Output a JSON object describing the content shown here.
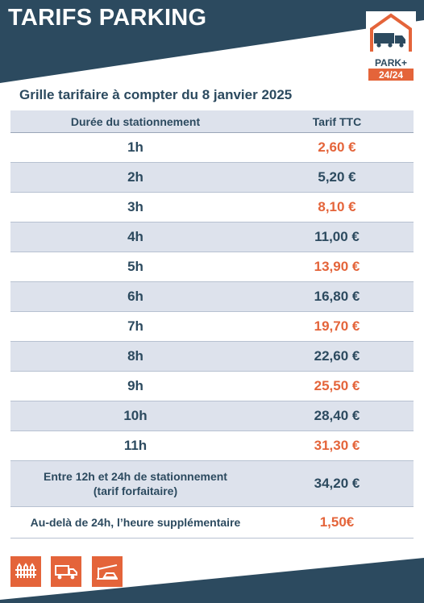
{
  "header": {
    "title": "TARIFS PARKING",
    "logo_text_top": "PARK+",
    "logo_text_bottom": "24/24"
  },
  "subtitle": "Grille tarifaire à compter du 8 janvier 2025",
  "table": {
    "headers": [
      "Durée du stationnement",
      "Tarif TTC"
    ],
    "rows": [
      {
        "duration": "1h",
        "price": "2,60 €"
      },
      {
        "duration": "2h",
        "price": "5,20 €"
      },
      {
        "duration": "3h",
        "price": "8,10 €"
      },
      {
        "duration": "4h",
        "price": "11,00 €"
      },
      {
        "duration": "5h",
        "price": "13,90 €"
      },
      {
        "duration": "6h",
        "price": "16,80 €"
      },
      {
        "duration": "7h",
        "price": "19,70 €"
      },
      {
        "duration": "8h",
        "price": "22,60 €"
      },
      {
        "duration": "9h",
        "price": "25,50 €"
      },
      {
        "duration": "10h",
        "price": "28,40 €"
      },
      {
        "duration": "11h",
        "price": "31,30 €"
      }
    ],
    "forfait": {
      "line1": "Entre 12h et 24h de stationnement",
      "line2": "(tarif forfaitaire)",
      "price": "34,20 €"
    },
    "extra": {
      "duration": "Au-delà de 24h, l’heure supplémentaire",
      "price": "1,50€"
    }
  },
  "footer_icons": [
    "fence-icon",
    "truck-icon",
    "barrier-icon"
  ],
  "colors": {
    "navy": "#2c4a5f",
    "orange": "#e4643a",
    "row_shade": "#dde2ec"
  }
}
